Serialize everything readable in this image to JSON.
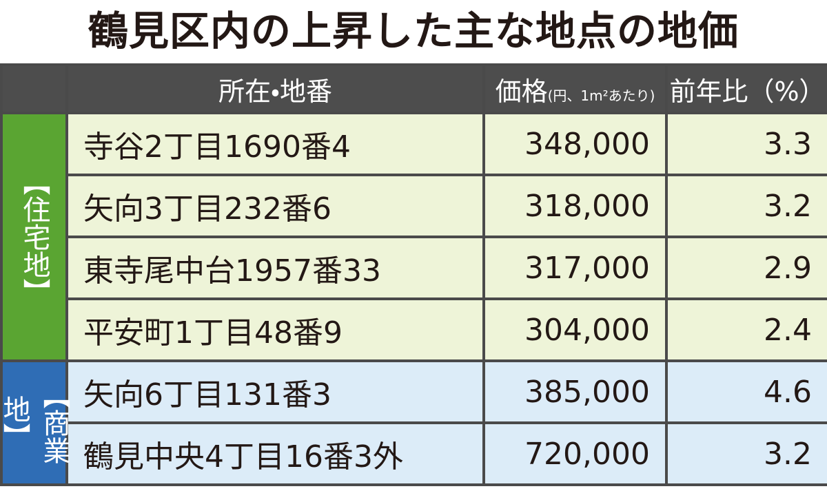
{
  "title": "鶴見区内の上昇した主な地点の地価",
  "header": {
    "location": "所在・地番",
    "price": "価格",
    "price_unit": "(円、1m²あたり)",
    "change": "前年比（%）"
  },
  "groups": [
    {
      "label": "【住宅地】",
      "rows": [
        [
          "寺谷2丁目1690番4",
          "348,000",
          "3.3"
        ],
        [
          "矢向3丁目232番6",
          "318,000",
          "3.2"
        ],
        [
          "東寺尾中台1957番33",
          "317,000",
          "2.9"
        ],
        [
          "平安町1丁目48番9",
          "304,000",
          "2.4"
        ]
      ]
    },
    {
      "label": "【商業地】",
      "rows": [
        [
          "矢向6丁目131番3",
          "385,000",
          "4.6"
        ],
        [
          "鶴見中央4丁目16番3外",
          "720,000",
          "3.2"
        ]
      ]
    }
  ]
}
